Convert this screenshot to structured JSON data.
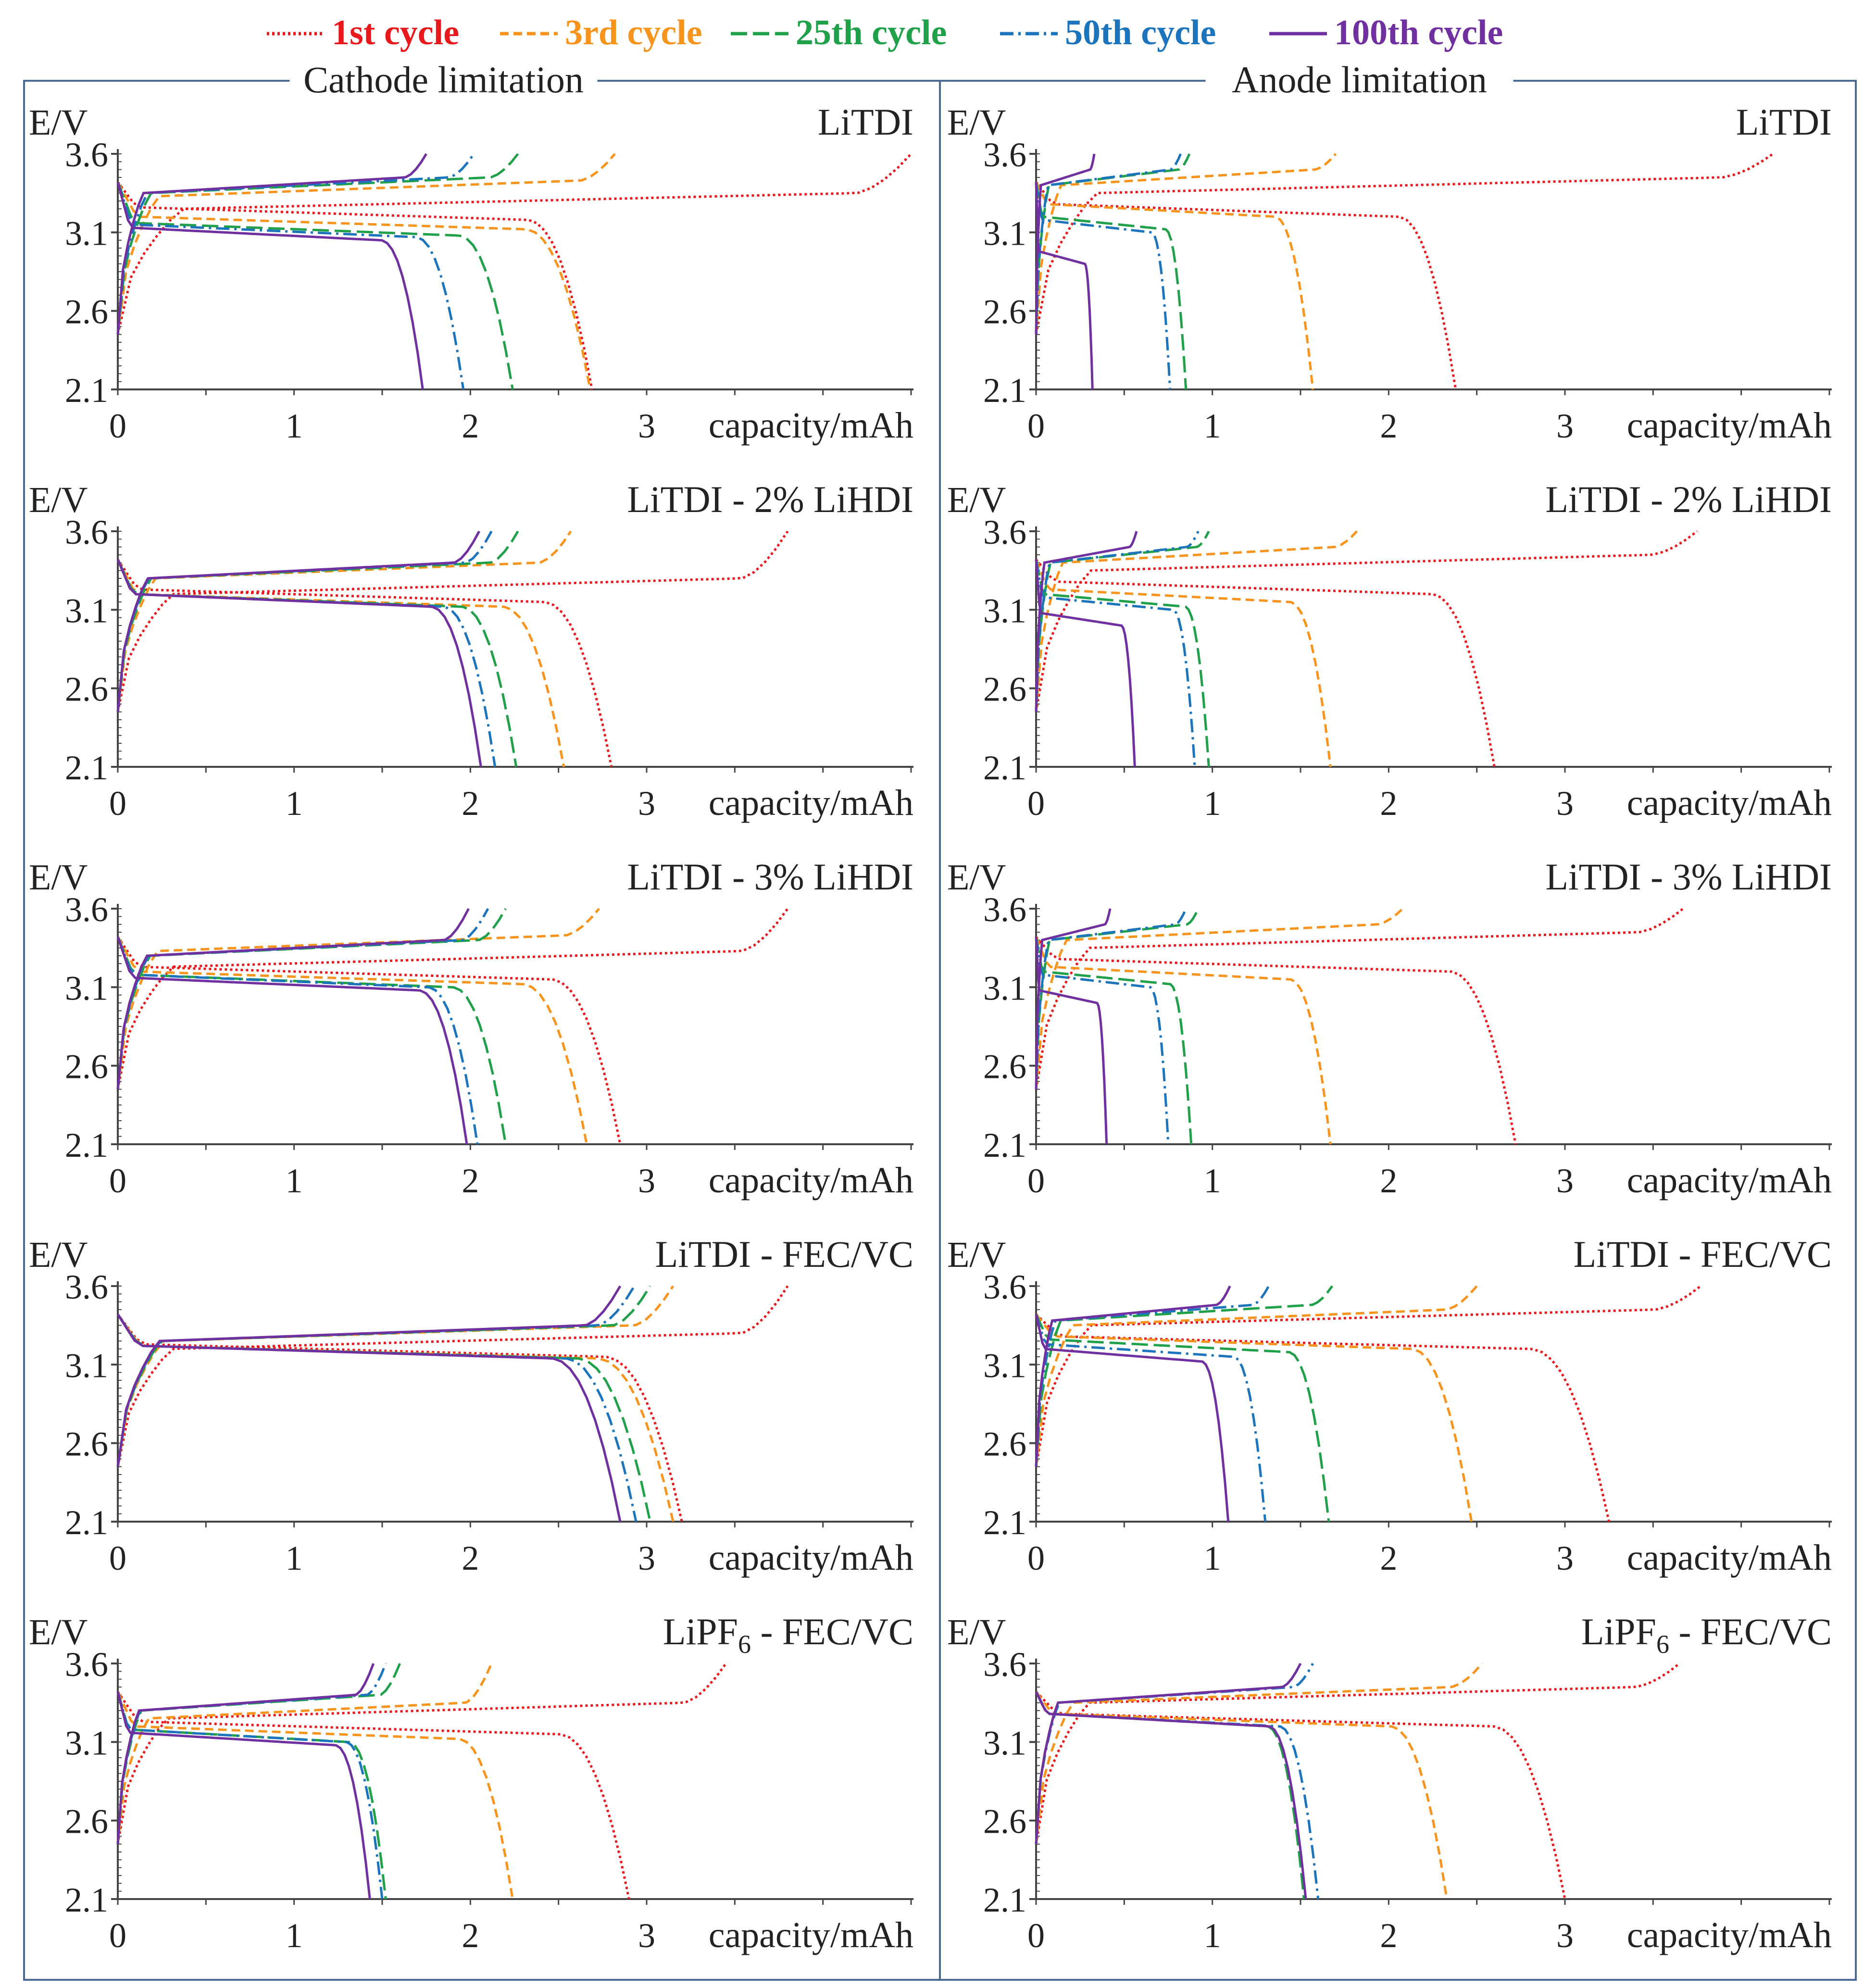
{
  "legend": [
    {
      "label": "1st cycle",
      "color": "#e8191c",
      "dash": "dot"
    },
    {
      "label": "3rd cycle",
      "color": "#f7941d",
      "dash": "dash"
    },
    {
      "label": "25th cycle",
      "color": "#21a04a",
      "dash": "longdash"
    },
    {
      "label": "50th cycle",
      "color": "#1c75bc",
      "dash": "dashdot"
    },
    {
      "label": "100th cycle",
      "color": "#7030a0",
      "dash": "solid"
    }
  ],
  "columns": [
    {
      "title": "Cathode limitation"
    },
    {
      "title": "Anode limitation"
    }
  ],
  "axes": {
    "ylabel": "E/V",
    "xlabel": "capacity/mAh",
    "yticks": [
      "3.6",
      "3.1",
      "2.6",
      "2.1"
    ],
    "xticks": [
      "0",
      "1",
      "2",
      "3"
    ]
  },
  "chart_data": [
    {
      "type": "line",
      "title": "LiTDI",
      "column": "Cathode limitation",
      "xlim": [
        0,
        4.5
      ],
      "ylim": [
        2.1,
        3.6
      ],
      "xlabel": "capacity/mAh",
      "ylabel": "E/V",
      "series": [
        {
          "name": "1st cycle",
          "charge_end": 4.5,
          "charge_plateau": 3.35,
          "discharge_end": 2.69,
          "discharge_plateau": 3.18
        },
        {
          "name": "3rd cycle",
          "charge_end": 2.82,
          "charge_plateau": 3.43,
          "discharge_end": 2.68,
          "discharge_plateau": 3.12
        },
        {
          "name": "25th cycle",
          "charge_end": 2.27,
          "charge_plateau": 3.45,
          "discharge_end": 2.24,
          "discharge_plateau": 3.08
        },
        {
          "name": "50th cycle",
          "charge_end": 2.02,
          "charge_plateau": 3.45,
          "discharge_end": 1.96,
          "discharge_plateau": 3.07
        },
        {
          "name": "100th cycle",
          "charge_end": 1.75,
          "charge_plateau": 3.45,
          "discharge_end": 1.73,
          "discharge_plateau": 3.05
        }
      ]
    },
    {
      "type": "line",
      "title": "LiTDI",
      "column": "Anode limitation",
      "xlim": [
        0,
        4.5
      ],
      "ylim": [
        2.1,
        3.6
      ],
      "xlabel": "capacity/mAh",
      "ylabel": "E/V",
      "series": [
        {
          "name": "1st cycle",
          "charge_end": 4.18,
          "charge_plateau": 3.45,
          "discharge_end": 2.38,
          "discharge_plateau": 3.2
        },
        {
          "name": "3rd cycle",
          "charge_end": 1.7,
          "charge_plateau": 3.5,
          "discharge_end": 1.57,
          "discharge_plateau": 3.2
        },
        {
          "name": "25th cycle",
          "charge_end": 0.87,
          "charge_plateau": 3.5,
          "discharge_end": 0.85,
          "discharge_plateau": 3.12
        },
        {
          "name": "50th cycle",
          "charge_end": 0.82,
          "charge_plateau": 3.5,
          "discharge_end": 0.76,
          "discharge_plateau": 3.1
        },
        {
          "name": "100th cycle",
          "charge_end": 0.33,
          "charge_plateau": 3.5,
          "discharge_end": 0.32,
          "discharge_plateau": 2.9
        }
      ]
    },
    {
      "type": "line",
      "title": "LiTDI - 2% LiHDI",
      "column": "Cathode limitation",
      "xlim": [
        0,
        4.5
      ],
      "ylim": [
        2.1,
        3.6
      ],
      "xlabel": "capacity/mAh",
      "ylabel": "E/V",
      "series": [
        {
          "name": "1st cycle",
          "charge_end": 3.8,
          "charge_plateau": 3.3,
          "discharge_end": 2.8,
          "discharge_plateau": 3.15
        },
        {
          "name": "3rd cycle",
          "charge_end": 2.57,
          "charge_plateau": 3.4,
          "discharge_end": 2.53,
          "discharge_plateau": 3.12
        },
        {
          "name": "25th cycle",
          "charge_end": 2.27,
          "charge_plateau": 3.4,
          "discharge_end": 2.26,
          "discharge_plateau": 3.12
        },
        {
          "name": "50th cycle",
          "charge_end": 2.12,
          "charge_plateau": 3.4,
          "discharge_end": 2.14,
          "discharge_plateau": 3.12
        },
        {
          "name": "100th cycle",
          "charge_end": 2.05,
          "charge_plateau": 3.4,
          "discharge_end": 2.06,
          "discharge_plateau": 3.12
        }
      ]
    },
    {
      "type": "line",
      "title": "LiTDI - 2% LiHDI",
      "column": "Anode limitation",
      "xlim": [
        0,
        4.5
      ],
      "ylim": [
        2.1,
        3.6
      ],
      "xlabel": "capacity/mAh",
      "ylabel": "E/V",
      "series": [
        {
          "name": "1st cycle",
          "charge_end": 3.75,
          "charge_plateau": 3.45,
          "discharge_end": 2.6,
          "discharge_plateau": 3.2
        },
        {
          "name": "3rd cycle",
          "charge_end": 1.82,
          "charge_plateau": 3.5,
          "discharge_end": 1.67,
          "discharge_plateau": 3.15
        },
        {
          "name": "25th cycle",
          "charge_end": 0.98,
          "charge_plateau": 3.5,
          "discharge_end": 0.98,
          "discharge_plateau": 3.12
        },
        {
          "name": "50th cycle",
          "charge_end": 0.92,
          "charge_plateau": 3.5,
          "discharge_end": 0.9,
          "discharge_plateau": 3.1
        },
        {
          "name": "100th cycle",
          "charge_end": 0.57,
          "charge_plateau": 3.5,
          "discharge_end": 0.56,
          "discharge_plateau": 3.0
        }
      ]
    },
    {
      "type": "line",
      "title": "LiTDI - 3% LiHDI",
      "column": "Cathode limitation",
      "xlim": [
        0,
        4.5
      ],
      "ylim": [
        2.1,
        3.6
      ],
      "xlabel": "capacity/mAh",
      "ylabel": "E/V",
      "series": [
        {
          "name": "1st cycle",
          "charge_end": 3.8,
          "charge_plateau": 3.33,
          "discharge_end": 2.85,
          "discharge_plateau": 3.15
        },
        {
          "name": "3rd cycle",
          "charge_end": 2.73,
          "charge_plateau": 3.43,
          "discharge_end": 2.66,
          "discharge_plateau": 3.12
        },
        {
          "name": "25th cycle",
          "charge_end": 2.2,
          "charge_plateau": 3.4,
          "discharge_end": 2.2,
          "discharge_plateau": 3.1
        },
        {
          "name": "50th cycle",
          "charge_end": 2.1,
          "charge_plateau": 3.4,
          "discharge_end": 2.04,
          "discharge_plateau": 3.1
        },
        {
          "name": "100th cycle",
          "charge_end": 1.99,
          "charge_plateau": 3.4,
          "discharge_end": 1.98,
          "discharge_plateau": 3.08
        }
      ]
    },
    {
      "type": "line",
      "title": "LiTDI - 3% LiHDI",
      "column": "Anode limitation",
      "xlim": [
        0,
        4.5
      ],
      "ylim": [
        2.1,
        3.6
      ],
      "xlabel": "capacity/mAh",
      "ylabel": "E/V",
      "series": [
        {
          "name": "1st cycle",
          "charge_end": 3.67,
          "charge_plateau": 3.45,
          "discharge_end": 2.72,
          "discharge_plateau": 3.2
        },
        {
          "name": "3rd cycle",
          "charge_end": 2.08,
          "charge_plateau": 3.5,
          "discharge_end": 1.67,
          "discharge_plateau": 3.15
        },
        {
          "name": "25th cycle",
          "charge_end": 0.92,
          "charge_plateau": 3.5,
          "discharge_end": 0.88,
          "discharge_plateau": 3.12
        },
        {
          "name": "50th cycle",
          "charge_end": 0.85,
          "charge_plateau": 3.5,
          "discharge_end": 0.75,
          "discharge_plateau": 3.1
        },
        {
          "name": "100th cycle",
          "charge_end": 0.42,
          "charge_plateau": 3.5,
          "discharge_end": 0.4,
          "discharge_plateau": 3.0
        }
      ]
    },
    {
      "type": "line",
      "title": "LiTDI - FEC/VC",
      "column": "Cathode limitation",
      "xlim": [
        0,
        4.5
      ],
      "ylim": [
        2.1,
        3.6
      ],
      "xlabel": "capacity/mAh",
      "ylabel": "E/V",
      "series": [
        {
          "name": "1st cycle",
          "charge_end": 3.8,
          "charge_plateau": 3.3,
          "discharge_end": 3.2,
          "discharge_plateau": 3.15
        },
        {
          "name": "3rd cycle",
          "charge_end": 3.15,
          "charge_plateau": 3.35,
          "discharge_end": 3.15,
          "discharge_plateau": 3.14
        },
        {
          "name": "25th cycle",
          "charge_end": 3.02,
          "charge_plateau": 3.35,
          "discharge_end": 3.02,
          "discharge_plateau": 3.14
        },
        {
          "name": "50th cycle",
          "charge_end": 2.93,
          "charge_plateau": 3.35,
          "discharge_end": 2.94,
          "discharge_plateau": 3.14
        },
        {
          "name": "100th cycle",
          "charge_end": 2.85,
          "charge_plateau": 3.35,
          "discharge_end": 2.85,
          "discharge_plateau": 3.14
        }
      ]
    },
    {
      "type": "line",
      "title": "LiTDI - FEC/VC",
      "column": "Anode limitation",
      "xlim": [
        0,
        4.5
      ],
      "ylim": [
        2.1,
        3.6
      ],
      "xlabel": "capacity/mAh",
      "ylabel": "E/V",
      "series": [
        {
          "name": "1st cycle",
          "charge_end": 3.77,
          "charge_plateau": 3.45,
          "discharge_end": 3.25,
          "discharge_plateau": 3.2
        },
        {
          "name": "3rd cycle",
          "charge_end": 2.5,
          "charge_plateau": 3.45,
          "discharge_end": 2.47,
          "discharge_plateau": 3.2
        },
        {
          "name": "25th cycle",
          "charge_end": 1.68,
          "charge_plateau": 3.48,
          "discharge_end": 1.66,
          "discharge_plateau": 3.18
        },
        {
          "name": "50th cycle",
          "charge_end": 1.32,
          "charge_plateau": 3.48,
          "discharge_end": 1.3,
          "discharge_plateau": 3.15
        },
        {
          "name": "100th cycle",
          "charge_end": 1.1,
          "charge_plateau": 3.48,
          "discharge_end": 1.09,
          "discharge_plateau": 3.12
        }
      ]
    },
    {
      "type": "line",
      "title": "LiPF6 - FEC/VC",
      "column": "Cathode limitation",
      "xlim": [
        0,
        4.5
      ],
      "ylim": [
        2.1,
        3.6
      ],
      "xlabel": "capacity/mAh",
      "ylabel": "E/V",
      "series": [
        {
          "name": "1st cycle",
          "charge_end": 3.45,
          "charge_plateau": 3.35,
          "discharge_end": 2.9,
          "discharge_plateau": 3.15
        },
        {
          "name": "3rd cycle",
          "charge_end": 2.12,
          "charge_plateau": 3.35,
          "discharge_end": 2.24,
          "discharge_plateau": 3.12
        },
        {
          "name": "25th cycle",
          "charge_end": 1.6,
          "charge_plateau": 3.4,
          "discharge_end": 1.52,
          "discharge_plateau": 3.1
        },
        {
          "name": "50th cycle",
          "charge_end": 1.52,
          "charge_plateau": 3.4,
          "discharge_end": 1.5,
          "discharge_plateau": 3.1
        },
        {
          "name": "100th cycle",
          "charge_end": 1.45,
          "charge_plateau": 3.4,
          "discharge_end": 1.43,
          "discharge_plateau": 3.08
        }
      ]
    },
    {
      "type": "line",
      "title": "LiPF6 - FEC/VC",
      "column": "Anode limitation",
      "xlim": [
        0,
        4.5
      ],
      "ylim": [
        2.1,
        3.6
      ],
      "xlabel": "capacity/mAh",
      "ylabel": "E/V",
      "series": [
        {
          "name": "1st cycle",
          "charge_end": 3.65,
          "charge_plateau": 3.45,
          "discharge_end": 3.0,
          "discharge_plateau": 3.2
        },
        {
          "name": "3rd cycle",
          "charge_end": 2.53,
          "charge_plateau": 3.45,
          "discharge_end": 2.33,
          "discharge_plateau": 3.2
        },
        {
          "name": "25th cycle",
          "charge_end": 1.5,
          "charge_plateau": 3.45,
          "discharge_end": 1.52,
          "discharge_plateau": 3.2
        },
        {
          "name": "50th cycle",
          "charge_end": 1.57,
          "charge_plateau": 3.45,
          "discharge_end": 1.6,
          "discharge_plateau": 3.2
        },
        {
          "name": "100th cycle",
          "charge_end": 1.5,
          "charge_plateau": 3.45,
          "discharge_end": 1.53,
          "discharge_plateau": 3.2
        }
      ]
    }
  ]
}
